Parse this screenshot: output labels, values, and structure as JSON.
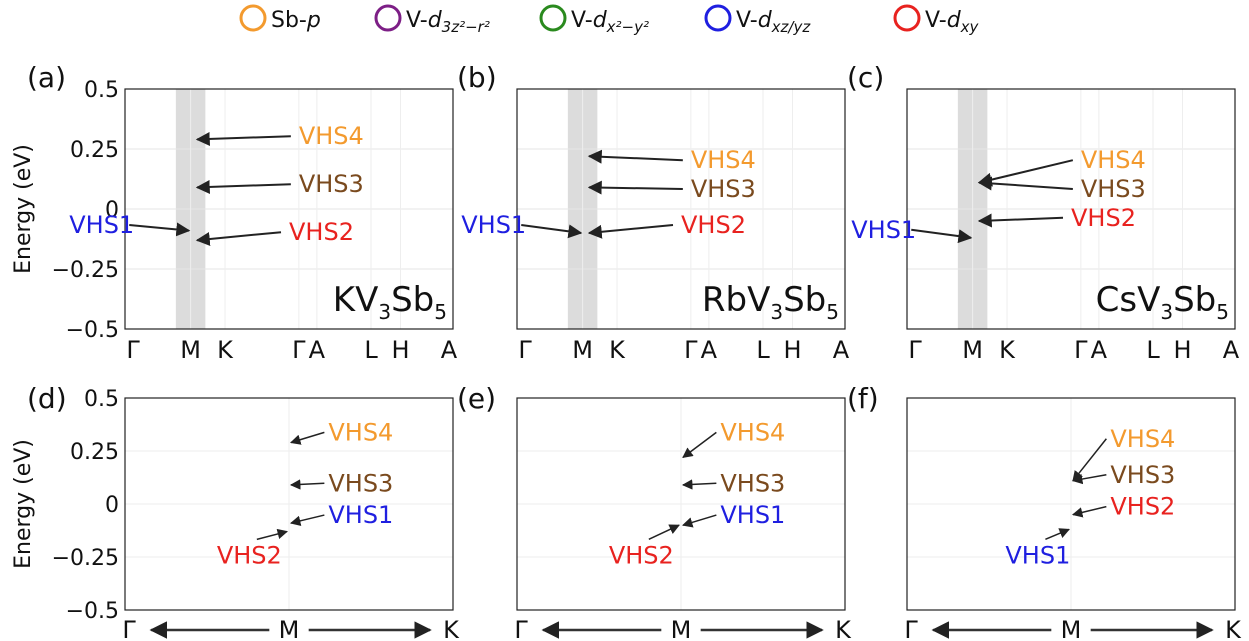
{
  "legend": [
    {
      "key": "sb_p",
      "label": "Sb-p",
      "color": "#f39a2e"
    },
    {
      "key": "v_dz2",
      "label": "V-d3z²−r²",
      "color": "#7d1f86"
    },
    {
      "key": "v_dx2y2",
      "label": "V-dx²−y²",
      "color": "#2a8a1e"
    },
    {
      "key": "v_dxzyz",
      "label": "V-dxz/yz",
      "color": "#1f1fe0"
    },
    {
      "key": "v_dxy",
      "label": "V-dxy",
      "color": "#e8221f"
    }
  ],
  "colors": {
    "vhs1": "#1f1fe0",
    "vhs2": "#e8221f",
    "vhs3": "#7a4a1e",
    "vhs4": "#f39a2e",
    "shade": "#d8d8d8"
  },
  "chart_data": [
    {
      "panel": "(a)",
      "type": "line",
      "compound": "KV3Sb5",
      "ylabel": "Energy (eV)",
      "ylim": [
        -0.5,
        0.5
      ],
      "yticks": [
        "0.5",
        "0.25",
        "0",
        "−0.25",
        "−0.5"
      ],
      "xticks": [
        "Γ",
        "M",
        "K",
        "Γ",
        "A",
        "L",
        "H",
        "A"
      ],
      "vhs": [
        {
          "label": "VHS1",
          "k": "M",
          "energy": -0.09
        },
        {
          "label": "VHS2",
          "k": "M",
          "energy": -0.13
        },
        {
          "label": "VHS3",
          "k": "M",
          "energy": 0.09
        },
        {
          "label": "VHS4",
          "k": "M",
          "energy": 0.29
        }
      ]
    },
    {
      "panel": "(b)",
      "type": "line",
      "compound": "RbV3Sb5",
      "ylim": [
        -0.5,
        0.5
      ],
      "xticks": [
        "Γ",
        "M",
        "K",
        "Γ",
        "A",
        "L",
        "H",
        "A"
      ],
      "vhs": [
        {
          "label": "VHS1",
          "k": "M",
          "energy": -0.1
        },
        {
          "label": "VHS2",
          "k": "M",
          "energy": -0.1
        },
        {
          "label": "VHS3",
          "k": "M",
          "energy": 0.09
        },
        {
          "label": "VHS4",
          "k": "M",
          "energy": 0.22
        }
      ]
    },
    {
      "panel": "(c)",
      "type": "line",
      "compound": "CsV3Sb5",
      "ylim": [
        -0.5,
        0.5
      ],
      "xticks": [
        "Γ",
        "M",
        "K",
        "Γ",
        "A",
        "L",
        "H",
        "A"
      ],
      "vhs": [
        {
          "label": "VHS1",
          "k": "M",
          "energy": -0.12
        },
        {
          "label": "VHS2",
          "k": "M",
          "energy": -0.05
        },
        {
          "label": "VHS3",
          "k": "M",
          "energy": 0.11
        },
        {
          "label": "VHS4",
          "k": "M",
          "energy": 0.11
        }
      ]
    },
    {
      "panel": "(d)",
      "type": "line",
      "ylabel": "Energy (eV)",
      "ylim": [
        -0.5,
        0.5
      ],
      "yticks": [
        "0.5",
        "0.25",
        "0",
        "−0.25",
        "−0.5"
      ],
      "xticks": [
        "Γ",
        "M",
        "K"
      ],
      "vhs": [
        {
          "label": "VHS4",
          "k": "M",
          "energy": 0.29
        },
        {
          "label": "VHS3",
          "k": "M",
          "energy": 0.09
        },
        {
          "label": "VHS1",
          "k": "M",
          "energy": -0.09
        },
        {
          "label": "VHS2",
          "k": "M",
          "energy": -0.13
        }
      ]
    },
    {
      "panel": "(e)",
      "type": "line",
      "ylim": [
        -0.5,
        0.5
      ],
      "xticks": [
        "Γ",
        "M",
        "K"
      ],
      "vhs": [
        {
          "label": "VHS4",
          "k": "M",
          "energy": 0.22
        },
        {
          "label": "VHS3",
          "k": "M",
          "energy": 0.09
        },
        {
          "label": "VHS1",
          "k": "M",
          "energy": -0.1
        },
        {
          "label": "VHS2",
          "k": "M",
          "energy": -0.1
        }
      ]
    },
    {
      "panel": "(f)",
      "type": "line",
      "ylim": [
        -0.5,
        0.5
      ],
      "xticks": [
        "Γ",
        "M",
        "K"
      ],
      "vhs": [
        {
          "label": "VHS4",
          "k": "M",
          "energy": 0.11
        },
        {
          "label": "VHS3",
          "k": "M",
          "energy": 0.11
        },
        {
          "label": "VHS2",
          "k": "M",
          "energy": -0.05
        },
        {
          "label": "VHS1",
          "k": "M",
          "energy": -0.12
        }
      ]
    }
  ]
}
